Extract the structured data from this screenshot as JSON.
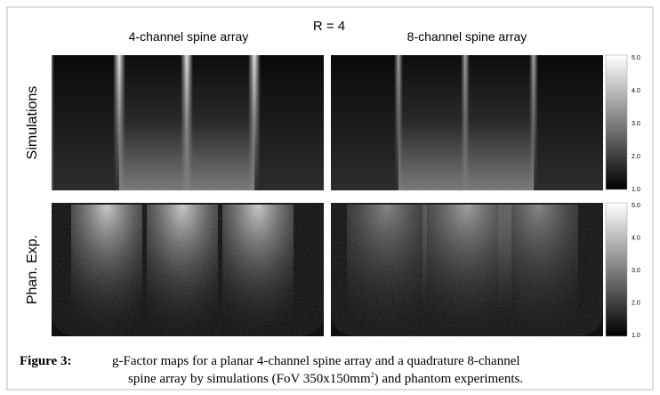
{
  "header": {
    "title": "R = 4"
  },
  "columns": [
    "4-channel spine array",
    "8-channel spine array"
  ],
  "rows": [
    "Simulations",
    "Phan. Exp."
  ],
  "colorbar": {
    "ticks": [
      "5.0",
      "4.0",
      "3.0",
      "2.0",
      "1.0"
    ]
  },
  "caption": {
    "label": "Figure 3:",
    "line1": "g-Factor maps for a planar 4-channel spine array and a quadrature 8-channel",
    "line2_before": "spine array by simulations (FoV 350x150mm",
    "superscript": "2",
    "line2_after": ") and phantom experiments."
  }
}
